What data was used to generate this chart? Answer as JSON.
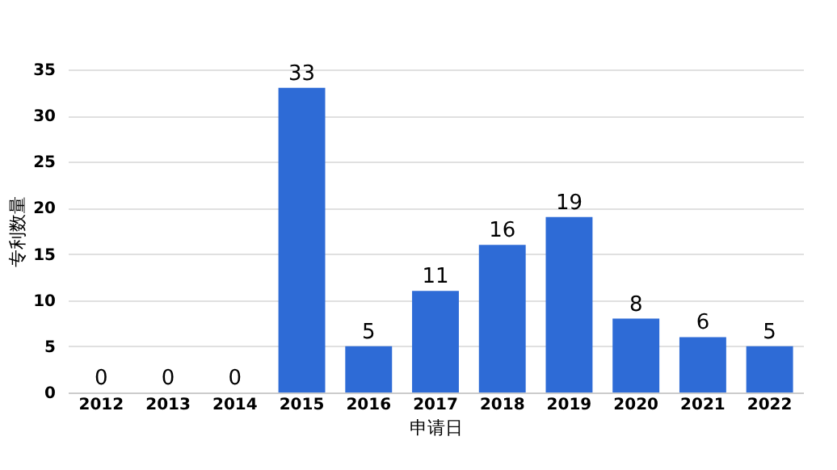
{
  "chart_data": {
    "type": "bar",
    "xlabel": "申请日",
    "ylabel": "专利数量",
    "categories": [
      "2012",
      "2013",
      "2014",
      "2015",
      "2016",
      "2017",
      "2018",
      "2019",
      "2020",
      "2021",
      "2022"
    ],
    "values": [
      0,
      0,
      0,
      33,
      5,
      11,
      16,
      19,
      8,
      6,
      5
    ],
    "color": "#2e6bd6",
    "ylim": [
      0,
      35
    ],
    "yticks": [
      0,
      5,
      10,
      15,
      20,
      25,
      30,
      35
    ],
    "grid": "y",
    "data_labels": true
  }
}
